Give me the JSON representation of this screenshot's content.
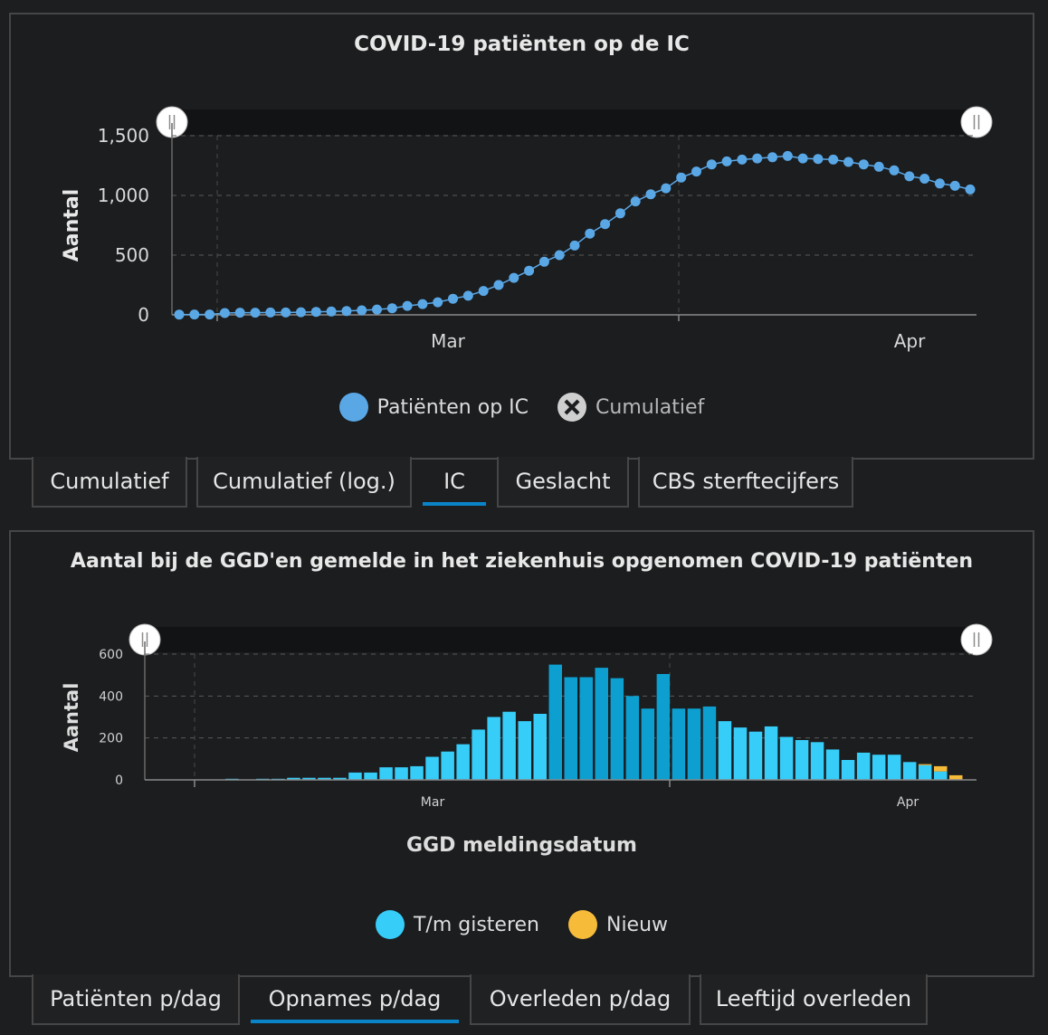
{
  "chart1": {
    "title": "COVID-19 patiënten op de IC",
    "tabs": [
      {
        "label": "Cumulatief",
        "active": false
      },
      {
        "label": "Cumulatief (log.)",
        "active": false
      },
      {
        "label": "IC",
        "active": true
      },
      {
        "label": "Geslacht",
        "active": false
      },
      {
        "label": "CBS sterftecijfers",
        "active": false
      }
    ],
    "legend": [
      {
        "label": "Patiënten op IC",
        "color": "#5aa7e6",
        "enabled": true
      },
      {
        "label": "Cumulatief",
        "color": "#cfcfcf",
        "enabled": false
      }
    ]
  },
  "chart2": {
    "title": "Aantal bij de GGD'en gemelde in het ziekenhuis opgenomen COVID-19 patiënten",
    "tabs": [
      {
        "label": "Patiënten p/dag",
        "active": false
      },
      {
        "label": "Opnames p/dag",
        "active": true
      },
      {
        "label": "Overleden p/dag",
        "active": false
      },
      {
        "label": "Leeftijd overleden",
        "active": false
      }
    ],
    "legend": [
      {
        "label": "T/m gisteren",
        "color": "#36cdf8"
      },
      {
        "label": "Nieuw",
        "color": "#f7bb3a"
      }
    ],
    "xlabel": "GGD meldingsdatum"
  },
  "chart_data": [
    {
      "type": "line",
      "title": "COVID-19 patiënten op de IC",
      "xlabel": "",
      "ylabel": "Aantal",
      "ylim": [
        0,
        1500
      ],
      "yticks": [
        "0",
        "500",
        "1,000",
        "1,500"
      ],
      "xticks": [
        "Mar",
        "Apr"
      ],
      "grid": true,
      "legend_position": "bottom",
      "series": [
        {
          "name": "Patiënten op IC",
          "color": "#5aa7e6",
          "values": [
            2,
            3,
            3,
            15,
            18,
            18,
            20,
            20,
            22,
            25,
            28,
            32,
            38,
            45,
            55,
            75,
            90,
            105,
            135,
            160,
            200,
            250,
            310,
            370,
            445,
            500,
            580,
            680,
            760,
            850,
            950,
            1010,
            1060,
            1150,
            1200,
            1260,
            1285,
            1300,
            1310,
            1320,
            1330,
            1310,
            1305,
            1300,
            1280,
            1260,
            1240,
            1210,
            1160,
            1140,
            1100,
            1080,
            1050
          ]
        },
        {
          "name": "Cumulatief",
          "hidden": true,
          "values": []
        }
      ]
    },
    {
      "type": "bar",
      "title": "Aantal bij de GGD'en gemelde in het ziekenhuis opgenomen COVID-19 patiënten",
      "xlabel": "GGD meldingsdatum",
      "ylabel": "Aantal",
      "ylim": [
        0,
        600
      ],
      "yticks": [
        "0",
        "200",
        "400",
        "600"
      ],
      "xticks": [
        "Mar",
        "Apr"
      ],
      "grid": true,
      "legend_position": "bottom",
      "series": [
        {
          "name": "T/m gisteren",
          "color": "#36cdf8",
          "values": [
            2,
            0,
            0,
            0,
            0,
            5,
            0,
            5,
            5,
            10,
            10,
            10,
            10,
            35,
            35,
            60,
            60,
            65,
            110,
            135,
            170,
            240,
            300,
            325,
            280,
            315,
            550,
            490,
            490,
            535,
            485,
            400,
            340,
            505,
            340,
            340,
            350,
            280,
            250,
            230,
            255,
            205,
            190,
            180,
            145,
            95,
            130,
            120,
            120,
            85,
            70,
            40,
            0
          ]
        },
        {
          "name": "Nieuw",
          "color": "#f7bb3a",
          "values": [
            0,
            0,
            0,
            0,
            0,
            0,
            0,
            0,
            0,
            0,
            0,
            0,
            0,
            0,
            0,
            0,
            0,
            0,
            0,
            0,
            0,
            0,
            0,
            0,
            0,
            0,
            0,
            0,
            0,
            0,
            0,
            0,
            0,
            0,
            0,
            0,
            0,
            0,
            0,
            0,
            0,
            0,
            0,
            0,
            0,
            0,
            0,
            0,
            0,
            0,
            5,
            25,
            22
          ]
        }
      ]
    }
  ]
}
